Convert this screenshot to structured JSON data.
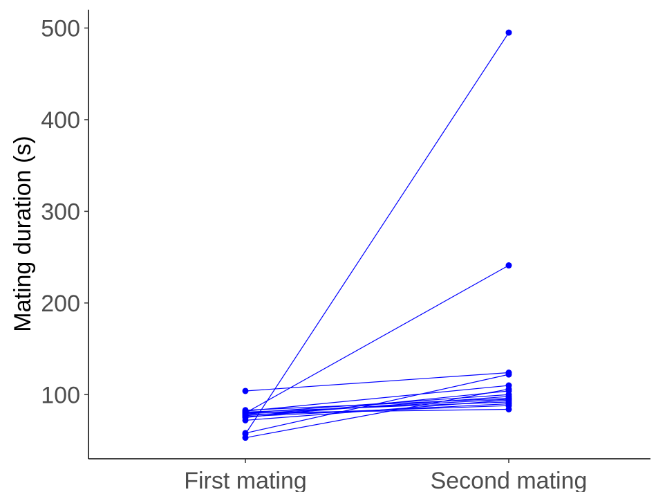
{
  "chart_data": {
    "type": "line",
    "title": "",
    "xlabel": "",
    "ylabel": "Mating duration (s)",
    "categories": [
      "First mating",
      "Second mating"
    ],
    "ylim": [
      30,
      520
    ],
    "yticks": [
      100,
      200,
      300,
      400,
      500
    ],
    "grid": false,
    "legend": "none",
    "color": "#0000ff",
    "pairs": [
      {
        "values": [
          57,
          495
        ]
      },
      {
        "values": [
          80,
          241
        ]
      },
      {
        "values": [
          104,
          124
        ]
      },
      {
        "values": [
          58,
          122
        ]
      },
      {
        "values": [
          82,
          110
        ]
      },
      {
        "values": [
          53,
          106
        ]
      },
      {
        "values": [
          75,
          104
        ]
      },
      {
        "values": [
          80,
          100
        ]
      },
      {
        "values": [
          77,
          98
        ]
      },
      {
        "values": [
          83,
          96
        ]
      },
      {
        "values": [
          79,
          95
        ]
      },
      {
        "values": [
          72,
          94
        ]
      },
      {
        "values": [
          81,
          92
        ]
      },
      {
        "values": [
          76,
          90
        ]
      },
      {
        "values": [
          78,
          88
        ]
      },
      {
        "values": [
          80,
          84
        ]
      }
    ]
  }
}
